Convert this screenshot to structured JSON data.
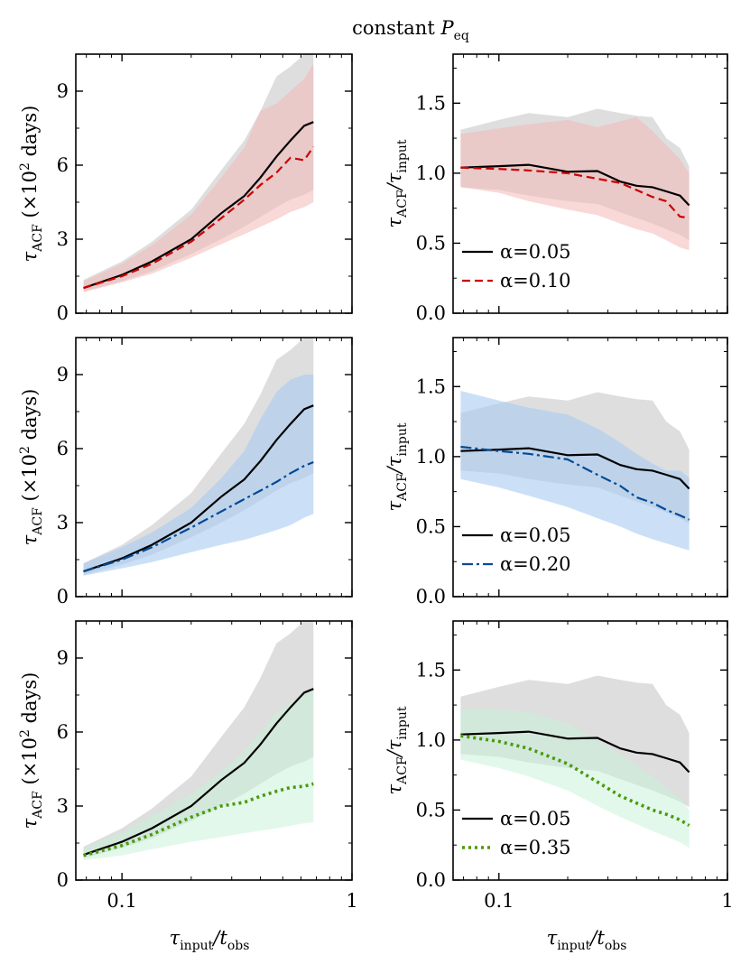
{
  "figure": {
    "title": "constant P_eq",
    "title_main": "constant ",
    "title_var": "P",
    "title_sub": "eq"
  },
  "labels": {
    "xlabel_main": "τ",
    "xlabel_sub1": "input",
    "xlabel_mid": "/t",
    "xlabel_sub2": "obs",
    "ylabel_left_main": "τ",
    "ylabel_left_sub": "ACF",
    "ylabel_left_unit_pre": " (×10",
    "ylabel_left_unit_sup": "2",
    "ylabel_left_unit_post": " days)",
    "ylabel_right_num": "τ",
    "ylabel_right_num_sub": "ACF",
    "ylabel_right_slash": "/τ",
    "ylabel_right_den_sub": "input"
  },
  "colors": {
    "reference": "#000000",
    "reference_band": "#c8c8c8",
    "red": "#cc0000",
    "red_band": "#f4b8b8",
    "blue": "#004a99",
    "blue_band": "#a8ccf2",
    "green": "#4a9a0c",
    "green_band": "#c6f2d8"
  },
  "chart_data": [
    {
      "id": "abs-red",
      "type": "line",
      "xscale": "log",
      "xlim": [
        0.063,
        1.0
      ],
      "ylim": [
        0,
        10.5
      ],
      "xticks": [
        0.1,
        1
      ],
      "xticklabels": [
        "0.1",
        "1"
      ],
      "yticks": [
        0,
        3,
        6,
        9
      ],
      "yticklabels": [
        "0",
        "3",
        "6",
        "9"
      ],
      "xlabel": "τinput/tobs",
      "ylabel": "τACF (×10^2 days)",
      "x": [
        0.068,
        0.1,
        0.135,
        0.2,
        0.27,
        0.34,
        0.4,
        0.47,
        0.54,
        0.62,
        0.68
      ],
      "series": [
        {
          "name": "α=0.05",
          "style": "solid",
          "color": "#000000",
          "values": [
            1.02,
            1.55,
            2.1,
            3.0,
            4.05,
            4.75,
            5.5,
            6.35,
            7.0,
            7.6,
            7.75
          ],
          "band_low": [
            0.88,
            1.3,
            1.7,
            2.4,
            3.0,
            3.5,
            3.9,
            4.3,
            4.6,
            4.8,
            5.0
          ],
          "band_high": [
            1.35,
            2.1,
            2.9,
            4.2,
            5.8,
            7.0,
            8.2,
            9.6,
            10.0,
            10.5,
            10.5
          ]
        },
        {
          "name": "α=0.10",
          "style": "dashed",
          "color": "#cc0000",
          "values": [
            1.02,
            1.5,
            2.0,
            2.9,
            3.85,
            4.6,
            5.2,
            5.7,
            6.3,
            6.2,
            6.75
          ],
          "band_low": [
            0.85,
            1.25,
            1.6,
            2.25,
            2.8,
            3.2,
            3.5,
            3.8,
            4.1,
            4.3,
            4.5
          ],
          "band_high": [
            1.3,
            2.0,
            2.75,
            4.0,
            5.5,
            6.7,
            8.2,
            8.5,
            9.0,
            9.5,
            10.1
          ]
        }
      ]
    },
    {
      "id": "ratio-red",
      "type": "line",
      "xscale": "log",
      "xlim": [
        0.063,
        1.0
      ],
      "ylim": [
        0.0,
        1.85
      ],
      "xticks": [
        0.1,
        1
      ],
      "xticklabels": [
        "0.1",
        "1"
      ],
      "yticks": [
        0.0,
        0.5,
        1.0,
        1.5
      ],
      "yticklabels": [
        "0.0",
        "0.5",
        "1.0",
        "1.5"
      ],
      "xlabel": "τinput/tobs",
      "ylabel": "τACF/τinput",
      "legend_position": "lower-left",
      "x": [
        0.068,
        0.1,
        0.135,
        0.2,
        0.27,
        0.34,
        0.4,
        0.47,
        0.54,
        0.62,
        0.68
      ],
      "series": [
        {
          "name": "α=0.05",
          "style": "solid",
          "color": "#000000",
          "values": [
            1.04,
            1.05,
            1.06,
            1.01,
            1.015,
            0.94,
            0.91,
            0.9,
            0.87,
            0.84,
            0.77
          ],
          "band_low": [
            0.9,
            0.88,
            0.84,
            0.8,
            0.78,
            0.72,
            0.68,
            0.64,
            0.6,
            0.56,
            0.52
          ],
          "band_high": [
            1.31,
            1.38,
            1.43,
            1.4,
            1.46,
            1.43,
            1.41,
            1.4,
            1.25,
            1.18,
            1.05
          ]
        },
        {
          "name": "α=0.10",
          "style": "dashed",
          "color": "#cc0000",
          "values": [
            1.04,
            1.03,
            1.02,
            1.0,
            0.96,
            0.93,
            0.88,
            0.83,
            0.8,
            0.69,
            0.68
          ],
          "band_low": [
            0.9,
            0.86,
            0.8,
            0.74,
            0.7,
            0.64,
            0.6,
            0.57,
            0.52,
            0.47,
            0.45
          ],
          "band_high": [
            1.28,
            1.32,
            1.35,
            1.38,
            1.33,
            1.37,
            1.4,
            1.3,
            1.2,
            1.1,
            1.0
          ]
        }
      ]
    },
    {
      "id": "abs-blue",
      "type": "line",
      "xscale": "log",
      "xlim": [
        0.063,
        1.0
      ],
      "ylim": [
        0,
        10.5
      ],
      "xticks": [
        0.1,
        1
      ],
      "xticklabels": [
        "0.1",
        "1"
      ],
      "yticks": [
        0,
        3,
        6,
        9
      ],
      "yticklabels": [
        "0",
        "3",
        "6",
        "9"
      ],
      "xlabel": "τinput/tobs",
      "ylabel": "τACF (×10^2 days)",
      "x": [
        0.068,
        0.1,
        0.135,
        0.2,
        0.27,
        0.34,
        0.4,
        0.47,
        0.54,
        0.62,
        0.68
      ],
      "series": [
        {
          "name": "α=0.05",
          "style": "solid",
          "color": "#000000",
          "values": [
            1.02,
            1.55,
            2.1,
            3.0,
            4.05,
            4.75,
            5.5,
            6.35,
            7.0,
            7.6,
            7.75
          ],
          "band_low": [
            0.88,
            1.3,
            1.7,
            2.4,
            3.0,
            3.5,
            3.9,
            4.3,
            4.6,
            4.8,
            5.0
          ],
          "band_high": [
            1.35,
            2.1,
            2.9,
            4.2,
            5.8,
            7.0,
            8.2,
            9.6,
            10.0,
            10.5,
            10.5
          ]
        },
        {
          "name": "α=0.20",
          "style": "dashdot",
          "color": "#004a99",
          "values": [
            1.02,
            1.5,
            2.0,
            2.8,
            3.45,
            3.95,
            4.3,
            4.65,
            5.0,
            5.3,
            5.45
          ],
          "band_low": [
            0.85,
            1.15,
            1.4,
            1.8,
            2.1,
            2.3,
            2.5,
            2.7,
            2.9,
            3.2,
            3.35
          ],
          "band_high": [
            1.35,
            2.0,
            2.6,
            3.6,
            4.8,
            5.9,
            7.2,
            8.3,
            8.8,
            9.0,
            9.0
          ]
        }
      ]
    },
    {
      "id": "ratio-blue",
      "type": "line",
      "xscale": "log",
      "xlim": [
        0.063,
        1.0
      ],
      "ylim": [
        0.0,
        1.85
      ],
      "xticks": [
        0.1,
        1
      ],
      "xticklabels": [
        "0.1",
        "1"
      ],
      "yticks": [
        0.0,
        0.5,
        1.0,
        1.5
      ],
      "yticklabels": [
        "0.0",
        "0.5",
        "1.0",
        "1.5"
      ],
      "xlabel": "τinput/tobs",
      "ylabel": "τACF/τinput",
      "legend_position": "lower-left",
      "x": [
        0.068,
        0.1,
        0.135,
        0.2,
        0.27,
        0.34,
        0.4,
        0.47,
        0.54,
        0.62,
        0.68
      ],
      "series": [
        {
          "name": "α=0.05",
          "style": "solid",
          "color": "#000000",
          "values": [
            1.04,
            1.05,
            1.06,
            1.01,
            1.015,
            0.94,
            0.91,
            0.9,
            0.87,
            0.84,
            0.77
          ],
          "band_low": [
            0.9,
            0.88,
            0.84,
            0.8,
            0.78,
            0.72,
            0.68,
            0.64,
            0.6,
            0.56,
            0.52
          ],
          "band_high": [
            1.31,
            1.38,
            1.43,
            1.4,
            1.46,
            1.43,
            1.41,
            1.4,
            1.25,
            1.18,
            1.05
          ]
        },
        {
          "name": "α=0.20",
          "style": "dashdot",
          "color": "#004a99",
          "values": [
            1.07,
            1.04,
            1.02,
            0.98,
            0.87,
            0.79,
            0.71,
            0.67,
            0.62,
            0.58,
            0.55
          ],
          "band_low": [
            0.84,
            0.78,
            0.72,
            0.64,
            0.56,
            0.5,
            0.45,
            0.41,
            0.38,
            0.35,
            0.33
          ],
          "band_high": [
            1.47,
            1.4,
            1.35,
            1.3,
            1.2,
            1.1,
            1.02,
            0.95,
            0.9,
            0.9,
            0.85
          ]
        }
      ]
    },
    {
      "id": "abs-green",
      "type": "line",
      "xscale": "log",
      "xlim": [
        0.063,
        1.0
      ],
      "ylim": [
        0,
        10.5
      ],
      "xticks": [
        0.1,
        1
      ],
      "xticklabels": [
        "0.1",
        "1"
      ],
      "yticks": [
        0,
        3,
        6,
        9
      ],
      "yticklabels": [
        "0",
        "3",
        "6",
        "9"
      ],
      "xlabel": "τinput/tobs",
      "ylabel": "τACF (×10^2 days)",
      "x": [
        0.068,
        0.1,
        0.135,
        0.2,
        0.27,
        0.34,
        0.4,
        0.47,
        0.54,
        0.62,
        0.68
      ],
      "series": [
        {
          "name": "α=0.05",
          "style": "solid",
          "color": "#000000",
          "values": [
            1.02,
            1.55,
            2.1,
            3.0,
            4.05,
            4.75,
            5.5,
            6.35,
            7.0,
            7.6,
            7.75
          ],
          "band_low": [
            0.88,
            1.3,
            1.7,
            2.4,
            3.0,
            3.5,
            3.9,
            4.3,
            4.6,
            4.8,
            5.0
          ],
          "band_high": [
            1.35,
            2.1,
            2.9,
            4.2,
            5.8,
            7.0,
            8.2,
            9.6,
            10.0,
            10.5,
            10.5
          ]
        },
        {
          "name": "α=0.35",
          "style": "dotted",
          "color": "#4a9a0c",
          "values": [
            1.0,
            1.4,
            1.85,
            2.55,
            3.0,
            3.15,
            3.4,
            3.6,
            3.75,
            3.8,
            3.9
          ],
          "band_low": [
            0.8,
            1.0,
            1.25,
            1.55,
            1.75,
            1.9,
            2.0,
            2.1,
            2.2,
            2.3,
            2.35
          ],
          "band_high": [
            1.3,
            1.95,
            2.6,
            3.5,
            4.4,
            5.2,
            6.0,
            6.8,
            7.2,
            7.5,
            7.7
          ]
        }
      ]
    },
    {
      "id": "ratio-green",
      "type": "line",
      "xscale": "log",
      "xlim": [
        0.063,
        1.0
      ],
      "ylim": [
        0.0,
        1.85
      ],
      "xticks": [
        0.1,
        1
      ],
      "xticklabels": [
        "0.1",
        "1"
      ],
      "yticks": [
        0.0,
        0.5,
        1.0,
        1.5
      ],
      "yticklabels": [
        "0.0",
        "0.5",
        "1.0",
        "1.5"
      ],
      "xlabel": "τinput/tobs",
      "ylabel": "τACF/τinput",
      "legend_position": "lower-left",
      "x": [
        0.068,
        0.1,
        0.135,
        0.2,
        0.27,
        0.34,
        0.4,
        0.47,
        0.54,
        0.62,
        0.68
      ],
      "series": [
        {
          "name": "α=0.05",
          "style": "solid",
          "color": "#000000",
          "values": [
            1.04,
            1.05,
            1.06,
            1.01,
            1.015,
            0.94,
            0.91,
            0.9,
            0.87,
            0.84,
            0.77
          ],
          "band_low": [
            0.9,
            0.88,
            0.84,
            0.8,
            0.78,
            0.72,
            0.68,
            0.64,
            0.6,
            0.56,
            0.52
          ],
          "band_high": [
            1.31,
            1.38,
            1.43,
            1.4,
            1.46,
            1.43,
            1.41,
            1.4,
            1.25,
            1.18,
            1.05
          ]
        },
        {
          "name": "α=0.35",
          "style": "dotted",
          "color": "#4a9a0c",
          "values": [
            1.03,
            0.99,
            0.94,
            0.83,
            0.7,
            0.6,
            0.55,
            0.5,
            0.47,
            0.43,
            0.39
          ],
          "band_low": [
            0.86,
            0.8,
            0.74,
            0.64,
            0.53,
            0.45,
            0.4,
            0.35,
            0.31,
            0.27,
            0.23
          ],
          "band_high": [
            1.22,
            1.22,
            1.2,
            1.12,
            1.0,
            0.9,
            0.82,
            0.74,
            0.66,
            0.58,
            0.5
          ]
        }
      ]
    }
  ]
}
